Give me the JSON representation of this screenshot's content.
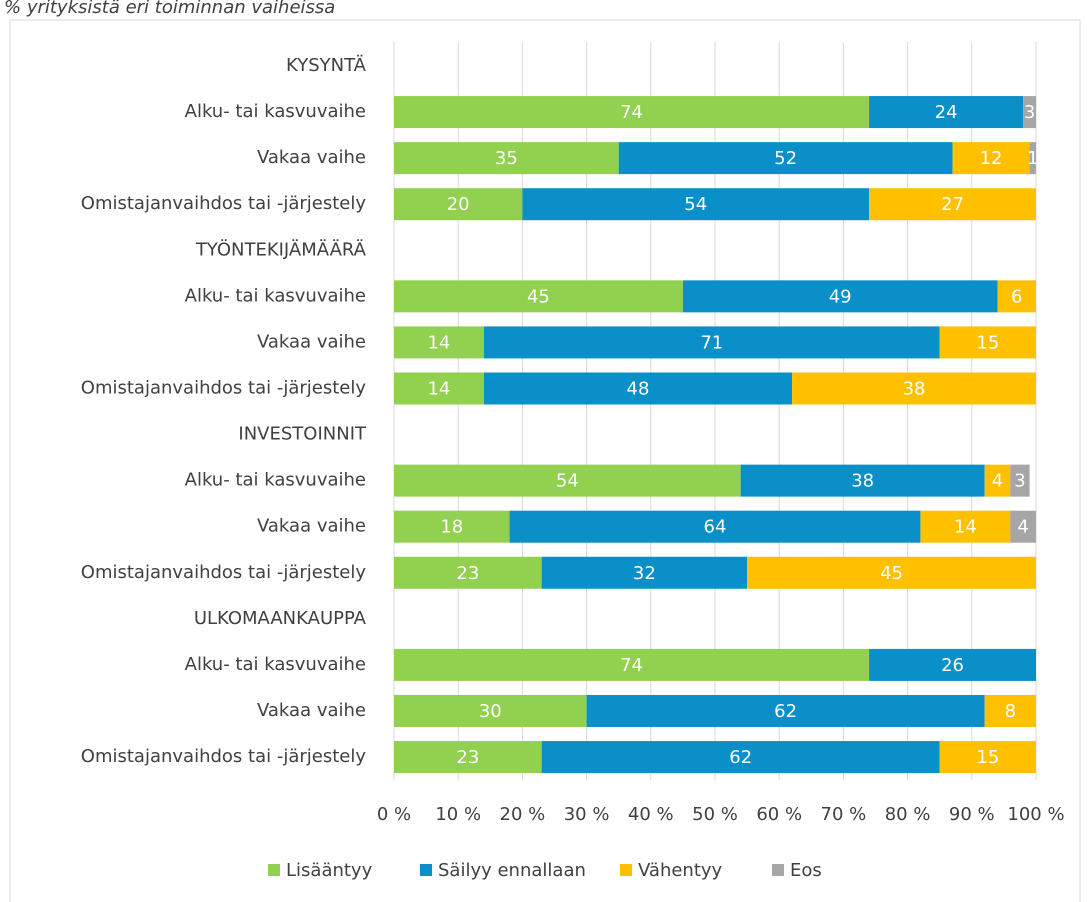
{
  "chart_data": {
    "type": "stacked_barh",
    "title": "% yrityksistä eri toiminnan vaiheissa",
    "categories": [
      "KYSYNTÄ",
      "Alku- tai kasvuvaihe",
      "Vakaa vaihe",
      "Omistajanvaihdos tai -järjestely",
      "TYÖNTEKIJÄMÄÄRÄ",
      "Alku- tai kasvuvaihe",
      "Vakaa vaihe",
      "Omistajanvaihdos tai -järjestely",
      "INVESTOINNIT",
      "Alku- tai kasvuvaihe",
      "Vakaa vaihe",
      "Omistajanvaihdos tai -järjestely",
      "ULKOMAANKAUPPA",
      "Alku- tai kasvuvaihe",
      "Vakaa vaihe",
      "Omistajanvaihdos tai -järjestely"
    ],
    "series": [
      {
        "name": "Lisääntyy",
        "color": "#92d050",
        "values": [
          null,
          74,
          35,
          20,
          null,
          45,
          14,
          14,
          null,
          54,
          18,
          23,
          null,
          74,
          30,
          23
        ]
      },
      {
        "name": "Säilyy ennallaan",
        "color": "#0b8fc9",
        "values": [
          null,
          24,
          52,
          54,
          null,
          49,
          71,
          48,
          null,
          38,
          64,
          32,
          null,
          26,
          62,
          62
        ]
      },
      {
        "name": "Vähentyy",
        "color": "#ffc000",
        "values": [
          null,
          null,
          12,
          27,
          null,
          6,
          15,
          38,
          null,
          4,
          14,
          45,
          null,
          null,
          8,
          15
        ]
      },
      {
        "name": "Eos",
        "color": "#a6a6a6",
        "values": [
          null,
          3,
          1,
          null,
          null,
          null,
          null,
          null,
          null,
          3,
          4,
          null,
          null,
          null,
          null,
          null
        ]
      }
    ],
    "xlim": [
      0,
      100
    ],
    "xticks": [
      {
        "value": 0,
        "label": "0 %"
      },
      {
        "value": 10,
        "label": "10 %"
      },
      {
        "value": 20,
        "label": "20 %"
      },
      {
        "value": 30,
        "label": "30 %"
      },
      {
        "value": 40,
        "label": "40 %"
      },
      {
        "value": 50,
        "label": "50 %"
      },
      {
        "value": 60,
        "label": "60 %"
      },
      {
        "value": 70,
        "label": "70 %"
      },
      {
        "value": 80,
        "label": "80 %"
      },
      {
        "value": 90,
        "label": "90 %"
      },
      {
        "value": 100,
        "label": "100 %"
      }
    ],
    "grid": true,
    "legend": "bottom"
  }
}
